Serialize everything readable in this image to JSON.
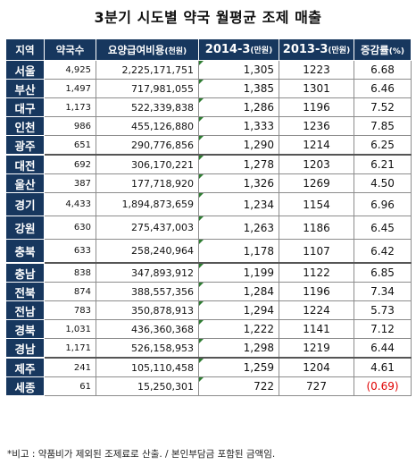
{
  "title": "3분기 시도별 약국 월평균 조제 매출",
  "headers": {
    "region": "지역",
    "shops": "약국수",
    "cost_main": "요양급여비용",
    "cost_unit": "(천원)",
    "y2014_main": "2014-3",
    "y2014_unit": "(만원)",
    "y2013_main": "2013-3",
    "y2013_unit": "(만원)",
    "rate_main": "증감률",
    "rate_unit": "(%)"
  },
  "rows": [
    {
      "region": "서울",
      "shops": "4,925",
      "cost": "2,225,171,751",
      "y2014": "1,305",
      "y2013": "1223",
      "rate": "6.68"
    },
    {
      "region": "부산",
      "shops": "1,497",
      "cost": "717,981,055",
      "y2014": "1,385",
      "y2013": "1301",
      "rate": "6.46"
    },
    {
      "region": "대구",
      "shops": "1,173",
      "cost": "522,339,838",
      "y2014": "1,286",
      "y2013": "1196",
      "rate": "7.52"
    },
    {
      "region": "인천",
      "shops": "986",
      "cost": "455,126,880",
      "y2014": "1,333",
      "y2013": "1236",
      "rate": "7.85"
    },
    {
      "region": "광주",
      "shops": "651",
      "cost": "290,776,856",
      "y2014": "1,290",
      "y2013": "1214",
      "rate": "6.25"
    },
    {
      "region": "대전",
      "shops": "692",
      "cost": "306,170,221",
      "y2014": "1,278",
      "y2013": "1203",
      "rate": "6.21"
    },
    {
      "region": "울산",
      "shops": "387",
      "cost": "177,718,920",
      "y2014": "1,326",
      "y2013": "1269",
      "rate": "4.50"
    },
    {
      "region": "경기",
      "shops": "4,433",
      "cost": "1,894,873,659",
      "y2014": "1,234",
      "y2013": "1154",
      "rate": "6.96"
    },
    {
      "region": "강원",
      "shops": "630",
      "cost": "275,437,003",
      "y2014": "1,263",
      "y2013": "1186",
      "rate": "6.45"
    },
    {
      "region": "충북",
      "shops": "633",
      "cost": "258,240,964",
      "y2014": "1,178",
      "y2013": "1107",
      "rate": "6.42"
    },
    {
      "region": "충남",
      "shops": "838",
      "cost": "347,893,912",
      "y2014": "1,199",
      "y2013": "1122",
      "rate": "6.85"
    },
    {
      "region": "전북",
      "shops": "874",
      "cost": "388,557,356",
      "y2014": "1,284",
      "y2013": "1196",
      "rate": "7.34"
    },
    {
      "region": "전남",
      "shops": "783",
      "cost": "350,878,913",
      "y2014": "1,294",
      "y2013": "1224",
      "rate": "5.73"
    },
    {
      "region": "경북",
      "shops": "1,031",
      "cost": "436,360,368",
      "y2014": "1,222",
      "y2013": "1141",
      "rate": "7.12"
    },
    {
      "region": "경남",
      "shops": "1,171",
      "cost": "526,158,953",
      "y2014": "1,298",
      "y2013": "1219",
      "rate": "6.44"
    },
    {
      "region": "제주",
      "shops": "241",
      "cost": "105,110,458",
      "y2014": "1,259",
      "y2013": "1204",
      "rate": "4.61"
    },
    {
      "region": "세종",
      "shops": "61",
      "cost": "15,250,301",
      "y2014": "722",
      "y2013": "727",
      "rate": "(0.69)"
    }
  ],
  "negative_color": "#e00000",
  "header_color": "#17375e",
  "note": "*비고 : 약품비가 제외된 조제료로 산출. / 본인부담금 포함된 금액임."
}
